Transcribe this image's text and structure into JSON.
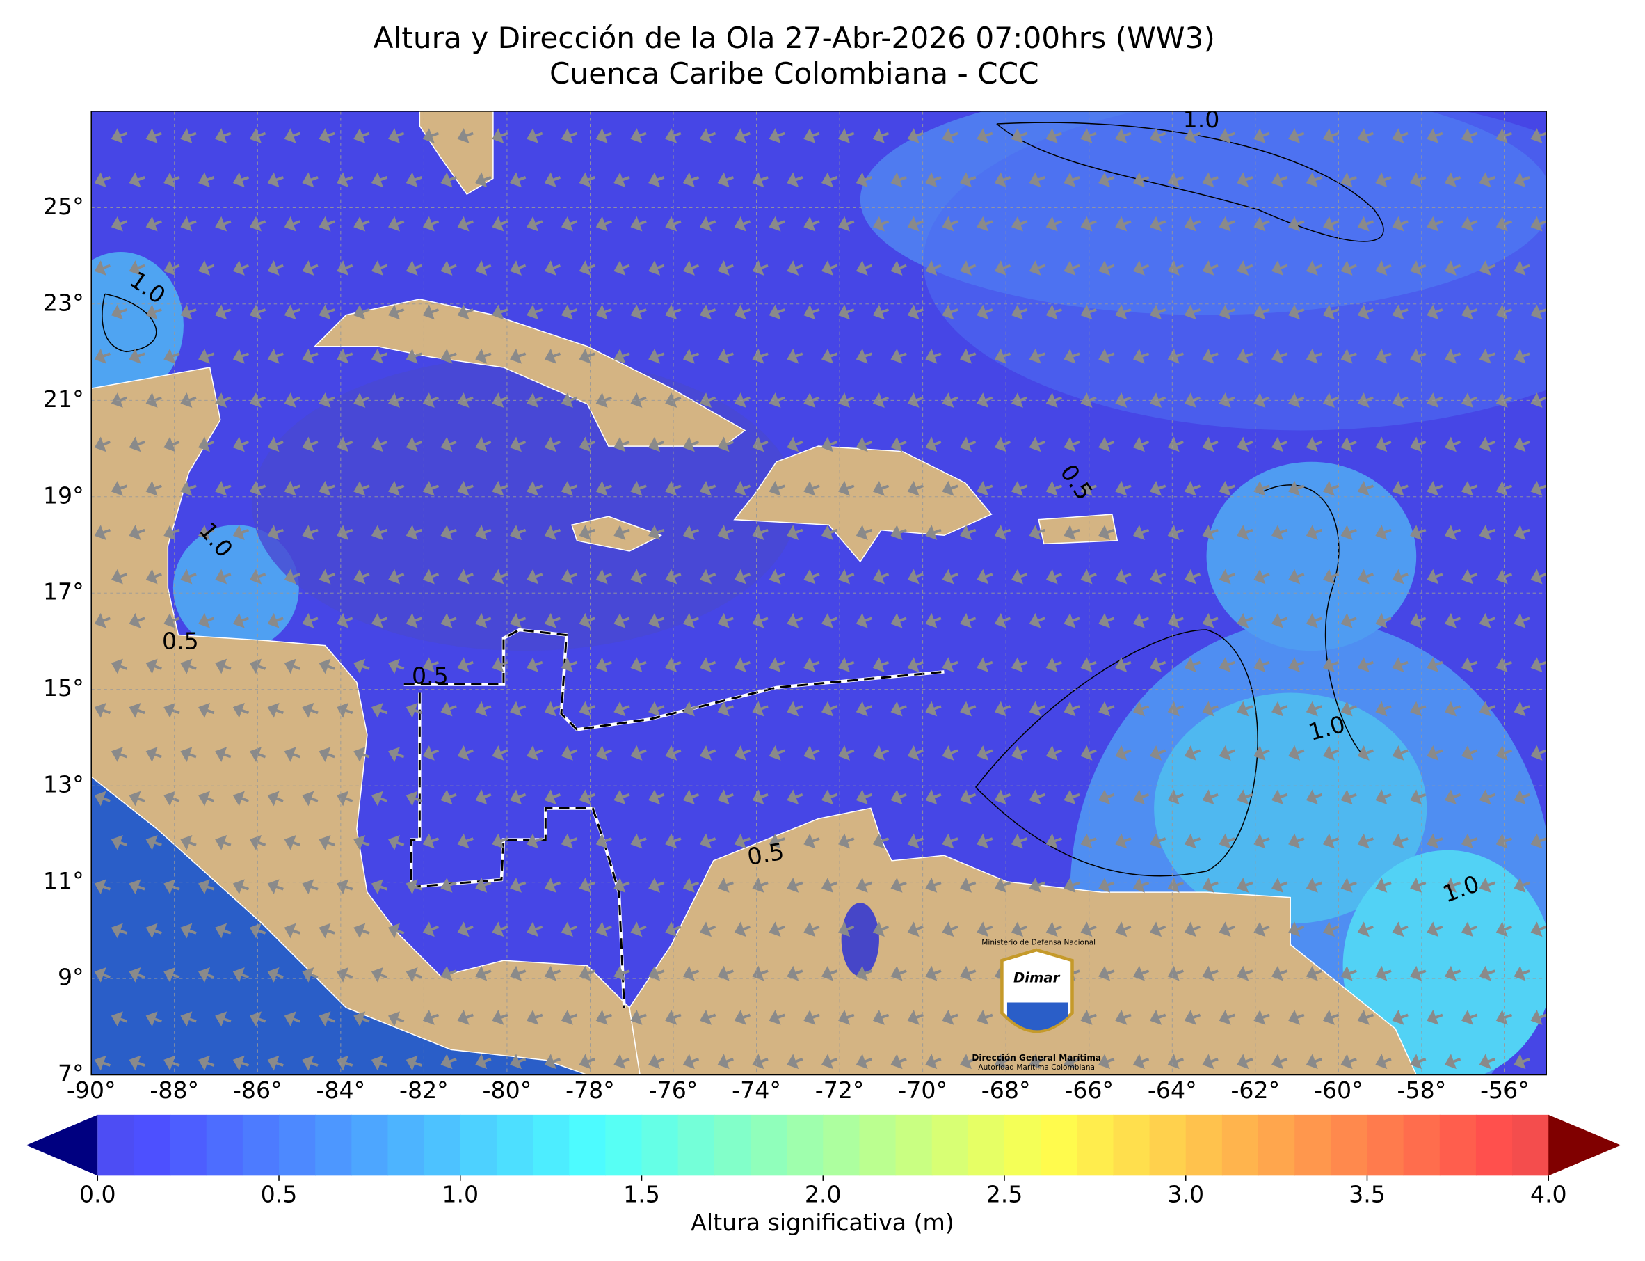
{
  "header": {
    "title": "Altura y Dirección de la Ola 27-Abr-2026 07:00hrs (WW3)",
    "subtitle": "Cuenca Caribe Colombiana - CCC"
  },
  "map": {
    "xlim": [
      -90,
      -55
    ],
    "ylim": [
      7,
      27
    ],
    "grid": true,
    "xticks": [
      {
        "value": -90,
        "label": "-90°"
      },
      {
        "value": -88,
        "label": "-88°"
      },
      {
        "value": -86,
        "label": "-86°"
      },
      {
        "value": -84,
        "label": "-84°"
      },
      {
        "value": -82,
        "label": "-82°"
      },
      {
        "value": -80,
        "label": "-80°"
      },
      {
        "value": -78,
        "label": "-78°"
      },
      {
        "value": -76,
        "label": "-76°"
      },
      {
        "value": -74,
        "label": "-74°"
      },
      {
        "value": -72,
        "label": "-72°"
      },
      {
        "value": -70,
        "label": "-70°"
      },
      {
        "value": -68,
        "label": "-68°"
      },
      {
        "value": -66,
        "label": "-66°"
      },
      {
        "value": -64,
        "label": "-64°"
      },
      {
        "value": -62,
        "label": "-62°"
      },
      {
        "value": -60,
        "label": "-60°"
      },
      {
        "value": -58,
        "label": "-58°"
      },
      {
        "value": -56,
        "label": "-56°"
      }
    ],
    "yticks": [
      {
        "value": 7,
        "label": "7°"
      },
      {
        "value": 9,
        "label": "9°"
      },
      {
        "value": 11,
        "label": "11°"
      },
      {
        "value": 13,
        "label": "13°"
      },
      {
        "value": 15,
        "label": "15°"
      },
      {
        "value": 17,
        "label": "17°"
      },
      {
        "value": 19,
        "label": "19°"
      },
      {
        "value": 21,
        "label": "21°"
      },
      {
        "value": 23,
        "label": "23°"
      },
      {
        "value": 25,
        "label": "25°"
      }
    ],
    "contour_labels": [
      "1.0",
      "1.0",
      "0.5",
      "0.5",
      "1.0",
      "0.5",
      "1.0",
      "1.0",
      "0.5"
    ]
  },
  "colorbar": {
    "label": "Altura significativa (m)",
    "colormap": "jet",
    "step": 0.1,
    "ticks": [
      {
        "value": 0,
        "label": "0.0"
      },
      0.5,
      {
        "value": 1,
        "label": "1.0"
      },
      1.5,
      {
        "value": 2,
        "label": "2.0"
      },
      2.5,
      {
        "value": 3,
        "label": "3.0"
      },
      3.5,
      {
        "value": 4,
        "label": "4.0"
      }
    ]
  },
  "logo": {
    "ministry": "Ministerio de Defensa Nacional",
    "brand": "Dimar",
    "name": "Dirección General Marítima",
    "tagline": "Autoridad Marítima Colombiana"
  }
}
